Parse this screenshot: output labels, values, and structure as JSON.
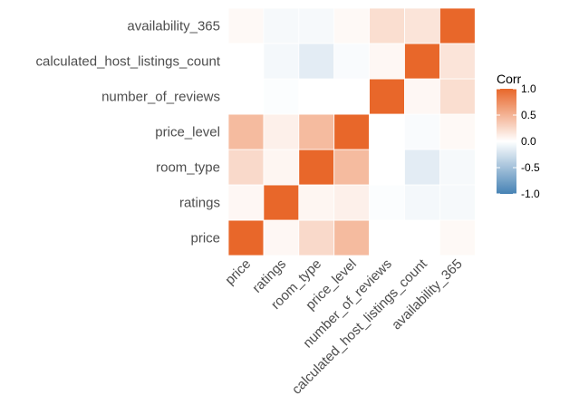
{
  "chart_data": {
    "type": "heatmap",
    "variables": [
      "price",
      "ratings",
      "room_type",
      "price_level",
      "number_of_reviews",
      "calculated_host_listings_count",
      "availability_365"
    ],
    "x_categories": [
      "price",
      "ratings",
      "room_type",
      "price_level",
      "number_of_reviews",
      "calculated_host_listings_count",
      "availability_365"
    ],
    "y_categories": [
      "price",
      "ratings",
      "room_type",
      "price_level",
      "number_of_reviews",
      "calculated_host_listings_count",
      "availability_365"
    ],
    "matrix": [
      [
        1.0,
        0.05,
        0.25,
        0.45,
        0.0,
        0.0,
        0.04
      ],
      [
        0.05,
        1.0,
        0.06,
        0.1,
        -0.02,
        -0.06,
        -0.05
      ],
      [
        0.25,
        0.06,
        1.0,
        0.45,
        0.0,
        -0.15,
        -0.05
      ],
      [
        0.45,
        0.1,
        0.45,
        1.0,
        0.0,
        -0.03,
        0.04
      ],
      [
        0.0,
        -0.02,
        0.0,
        0.0,
        1.0,
        0.05,
        0.22
      ],
      [
        0.0,
        -0.06,
        -0.15,
        -0.03,
        0.05,
        1.0,
        0.18
      ],
      [
        0.04,
        -0.05,
        -0.05,
        0.04,
        0.22,
        0.18,
        1.0
      ]
    ],
    "color_scale": {
      "low": "#4682b4",
      "mid": "#ffffff",
      "high": "#e8672a",
      "limits": [
        -1,
        1
      ]
    },
    "legend": {
      "title": "Corr",
      "ticks": [
        1.0,
        0.5,
        0.0,
        -0.5,
        -1.0
      ],
      "tick_labels": [
        "1.0",
        "0.5",
        "0.0",
        "-0.5",
        "-1.0"
      ],
      "position": "right"
    },
    "title": "",
    "xlabel": "",
    "ylabel": "",
    "grid": true,
    "grid_color": "#ebebeb"
  }
}
